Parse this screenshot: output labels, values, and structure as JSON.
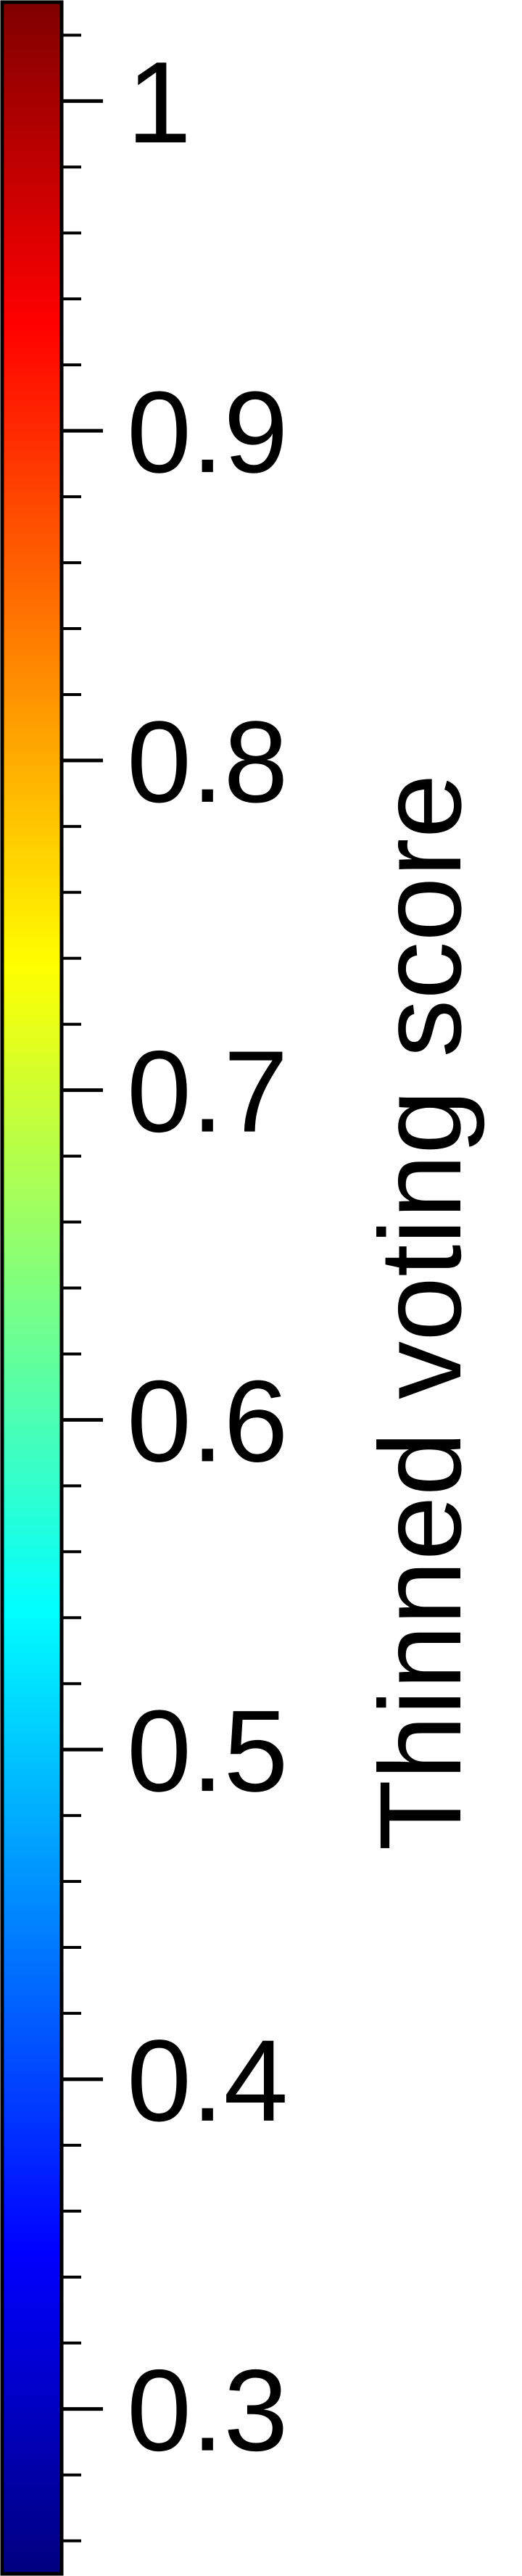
{
  "chart_data": {
    "type": "colorbar",
    "orientation": "vertical",
    "colormap": "jet",
    "label": "Thinned voting score",
    "range": [
      0.25,
      1.03
    ],
    "major_ticks": [
      0.3,
      0.4,
      0.5,
      0.6,
      0.7,
      0.8,
      0.9,
      1.0
    ],
    "tick_labels": [
      "0.3",
      "0.4",
      "0.5",
      "0.6",
      "0.7",
      "0.8",
      "0.9",
      "1"
    ],
    "minor_tick_step": 0.02,
    "colors": {
      "jet_stops": [
        "#00007f",
        "#0000ff",
        "#007fff",
        "#00ffff",
        "#7fff7f",
        "#ffff00",
        "#ff7f00",
        "#ff0000",
        "#7f0000"
      ],
      "frame": "#000000",
      "text": "#000000"
    }
  }
}
